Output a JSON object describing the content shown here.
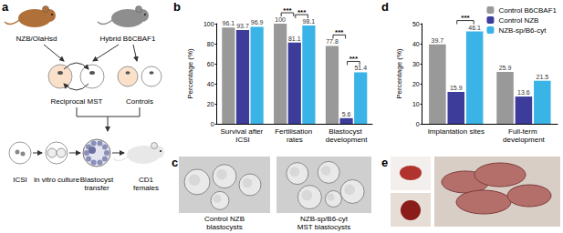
{
  "panel_labels": [
    "a",
    "b",
    "c",
    "d",
    "e"
  ],
  "panel_a": {
    "strains": [
      "NZB/OlaHsd",
      "Hybrid B6CBAF1"
    ],
    "groups": [
      "Reciprocal MST",
      "Controls"
    ],
    "steps": [
      [
        "ICSI"
      ],
      [
        "In vitro culture"
      ],
      [
        "Blastocyst",
        "transfer"
      ],
      [
        "CD1",
        "females"
      ]
    ]
  },
  "panel_c": {
    "captions": [
      [
        "Control NZB",
        "blastocysts"
      ],
      [
        "NZB-sp/B6-cyt",
        "MST blastocysts"
      ]
    ]
  },
  "chart_data": [
    {
      "type": "bar",
      "categories": [
        "Survival after ICSI",
        "Fertilisation rates",
        "Blastocyst development"
      ],
      "ylabel": "Percentage (%)",
      "series": [
        {
          "name": "Control B6CBAF1",
          "color": "#999999",
          "values": [
            96.1,
            100,
            77.8
          ]
        },
        {
          "name": "Control NZB",
          "color": "#3d3c9b",
          "values": [
            93.7,
            81.1,
            5.6
          ]
        },
        {
          "name": "NZB-sp/B6-cyt",
          "color": "#3ab4e6",
          "values": [
            96.9,
            98.1,
            51.4
          ]
        }
      ],
      "ylim": [
        0,
        100
      ],
      "yticks": [
        0,
        20,
        40,
        60,
        80,
        100
      ],
      "grid": false,
      "data_labels": true,
      "annotations": [
        {
          "text": "***",
          "category": "Fertilisation rates",
          "between": [
            "Control B6CBAF1",
            "Control NZB"
          ]
        },
        {
          "text": "***",
          "category": "Fertilisation rates",
          "between": [
            "Control NZB",
            "NZB-sp/B6-cyt"
          ]
        },
        {
          "text": "***",
          "category": "Blastocyst development",
          "between": [
            "Control B6CBAF1",
            "Control NZB"
          ]
        },
        {
          "text": "***",
          "category": "Blastocyst development",
          "between": [
            "Control NZB",
            "NZB-sp/B6-cyt"
          ]
        }
      ]
    },
    {
      "type": "bar",
      "categories": [
        "Implantation sites",
        "Full-term development"
      ],
      "ylabel": "Percentage (%)",
      "series": [
        {
          "name": "Control B6CBAF1",
          "color": "#999999",
          "values": [
            39.7,
            25.9
          ]
        },
        {
          "name": "Control NZB",
          "color": "#3d3c9b",
          "values": [
            15.9,
            13.6
          ]
        },
        {
          "name": "NZB-sp/B6-cyt",
          "color": "#3ab4e6",
          "values": [
            46.1,
            21.5
          ]
        }
      ],
      "ylim": [
        0,
        50
      ],
      "yticks": [
        0,
        10,
        20,
        30,
        40,
        50
      ],
      "grid": false,
      "data_labels": true,
      "legend": "upper right",
      "annotations": [
        {
          "text": "***",
          "category": "Implantation sites",
          "between": [
            "Control NZB",
            "NZB-sp/B6-cyt"
          ]
        }
      ]
    }
  ]
}
